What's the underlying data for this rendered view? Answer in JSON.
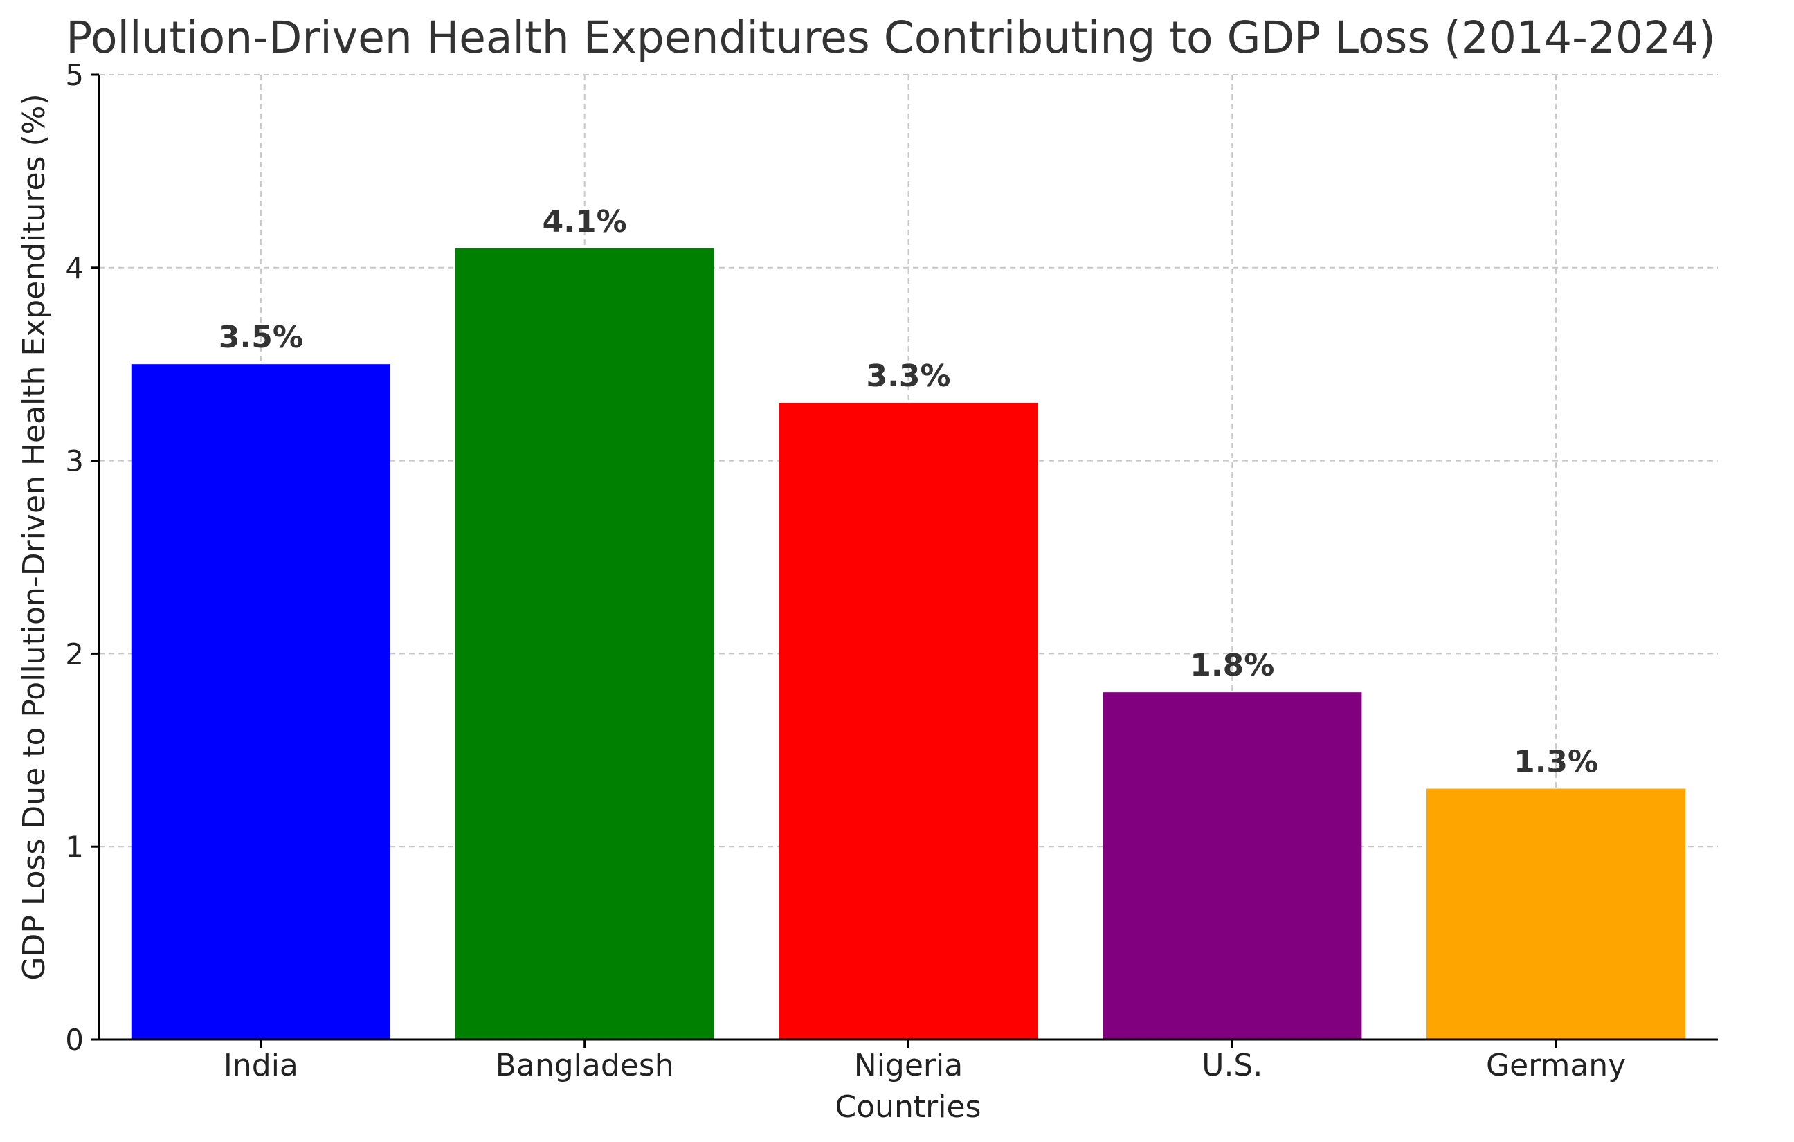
{
  "chart_data": {
    "type": "bar",
    "title": "Pollution-Driven Health Expenditures Contributing to GDP Loss (2014-2024)",
    "xlabel": "Countries",
    "ylabel": "GDP Loss Due to Pollution-Driven Health Expenditures (%)",
    "categories": [
      "India",
      "Bangladesh",
      "Nigeria",
      "U.S.",
      "Germany"
    ],
    "values": [
      3.5,
      4.1,
      3.3,
      1.8,
      1.3
    ],
    "value_labels": [
      "3.5%",
      "4.1%",
      "3.3%",
      "1.8%",
      "1.3%"
    ],
    "colors": [
      "#0000ff",
      "#008000",
      "#ff0000",
      "#800080",
      "#ffa500"
    ],
    "ylim": [
      0,
      5
    ],
    "yticks": [
      0,
      1,
      2,
      3,
      4,
      5
    ],
    "grid": true,
    "legend": "none"
  }
}
